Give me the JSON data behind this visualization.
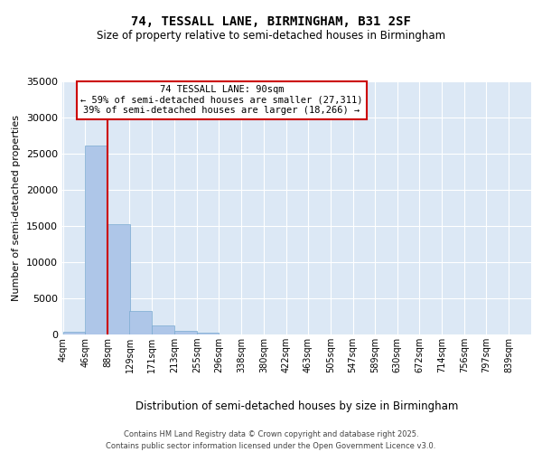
{
  "title1": "74, TESSALL LANE, BIRMINGHAM, B31 2SF",
  "title2": "Size of property relative to semi-detached houses in Birmingham",
  "xlabel": "Distribution of semi-detached houses by size in Birmingham",
  "ylabel": "Number of semi-detached properties",
  "annotation_title": "74 TESSALL LANE: 90sqm",
  "annotation_line1": "← 59% of semi-detached houses are smaller (27,311)",
  "annotation_line2": "39% of semi-detached houses are larger (18,266) →",
  "footer1": "Contains HM Land Registry data © Crown copyright and database right 2025.",
  "footer2": "Contains public sector information licensed under the Open Government Licence v3.0.",
  "bin_labels": [
    "4sqm",
    "46sqm",
    "88sqm",
    "129sqm",
    "171sqm",
    "213sqm",
    "255sqm",
    "296sqm",
    "338sqm",
    "380sqm",
    "422sqm",
    "463sqm",
    "505sqm",
    "547sqm",
    "589sqm",
    "630sqm",
    "672sqm",
    "714sqm",
    "756sqm",
    "797sqm",
    "839sqm"
  ],
  "bin_edges": [
    4,
    46,
    88,
    129,
    171,
    213,
    255,
    296,
    338,
    380,
    422,
    463,
    505,
    547,
    589,
    630,
    672,
    714,
    756,
    797,
    839
  ],
  "bar_heights": [
    400,
    26100,
    15200,
    3200,
    1200,
    500,
    280,
    0,
    0,
    0,
    0,
    0,
    0,
    0,
    0,
    0,
    0,
    0,
    0,
    0,
    0
  ],
  "bar_color": "#aec6e8",
  "bar_edge_color": "#7aaad0",
  "vline_color": "#cc0000",
  "vline_x": 88,
  "bg_color": "#dce8f5",
  "ylim": [
    0,
    35000
  ],
  "yticks": [
    0,
    5000,
    10000,
    15000,
    20000,
    25000,
    30000,
    35000
  ]
}
